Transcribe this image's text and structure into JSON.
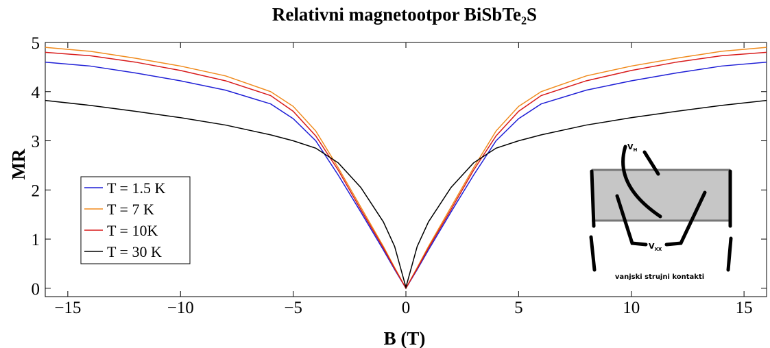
{
  "chart_data": {
    "type": "line",
    "title": "Relativni magnetootpor BiSbTe₂S",
    "xlabel": "B (T)",
    "ylabel": "MR",
    "x": [
      -16,
      -14,
      -12,
      -10,
      -8,
      -6,
      -5,
      -4,
      -3,
      -2,
      -1,
      -0.5,
      0,
      0.5,
      1,
      2,
      3,
      4,
      5,
      6,
      8,
      10,
      12,
      14,
      16
    ],
    "series": [
      {
        "name": "T = 1.5 K",
        "color": "#1f1fd6",
        "values": [
          4.6,
          4.52,
          4.38,
          4.22,
          4.03,
          3.75,
          3.45,
          3.0,
          2.3,
          1.55,
          0.78,
          0.38,
          0,
          0.38,
          0.78,
          1.55,
          2.3,
          3.0,
          3.45,
          3.75,
          4.03,
          4.22,
          4.38,
          4.52,
          4.6
        ]
      },
      {
        "name": "T = 7 K",
        "color": "#f08a1c",
        "values": [
          4.9,
          4.82,
          4.68,
          4.52,
          4.32,
          4.0,
          3.7,
          3.2,
          2.45,
          1.65,
          0.85,
          0.42,
          0,
          0.42,
          0.85,
          1.65,
          2.45,
          3.2,
          3.7,
          4.0,
          4.32,
          4.52,
          4.68,
          4.82,
          4.9
        ]
      },
      {
        "name": "T = 10K",
        "color": "#d81a1a",
        "values": [
          4.8,
          4.73,
          4.6,
          4.43,
          4.22,
          3.92,
          3.6,
          3.1,
          2.4,
          1.6,
          0.82,
          0.4,
          0,
          0.4,
          0.82,
          1.6,
          2.4,
          3.1,
          3.6,
          3.92,
          4.22,
          4.43,
          4.6,
          4.73,
          4.8
        ]
      },
      {
        "name": "T = 30 K",
        "color": "#000000",
        "values": [
          3.82,
          3.72,
          3.6,
          3.47,
          3.32,
          3.12,
          3.0,
          2.85,
          2.55,
          2.05,
          1.35,
          0.85,
          0.02,
          0.85,
          1.35,
          2.05,
          2.55,
          2.85,
          3.0,
          3.12,
          3.32,
          3.47,
          3.6,
          3.72,
          3.82
        ]
      }
    ],
    "xlim": [
      -16,
      16
    ],
    "ylim": [
      -0.17,
      5
    ],
    "xticks": [
      {
        "value": -15,
        "label": "−15"
      },
      {
        "value": -10,
        "label": "−10"
      },
      {
        "value": -5,
        "label": "−5"
      },
      0,
      5,
      10,
      15
    ],
    "yticks": [
      0,
      1,
      2,
      3,
      4,
      5
    ],
    "legend": "center left"
  },
  "diagram": {
    "hall_label": {
      "main": "V",
      "sub": "H"
    },
    "xx_label": {
      "main": "V",
      "sub": "XX"
    },
    "caption": "vanjski strujni kontakti"
  }
}
